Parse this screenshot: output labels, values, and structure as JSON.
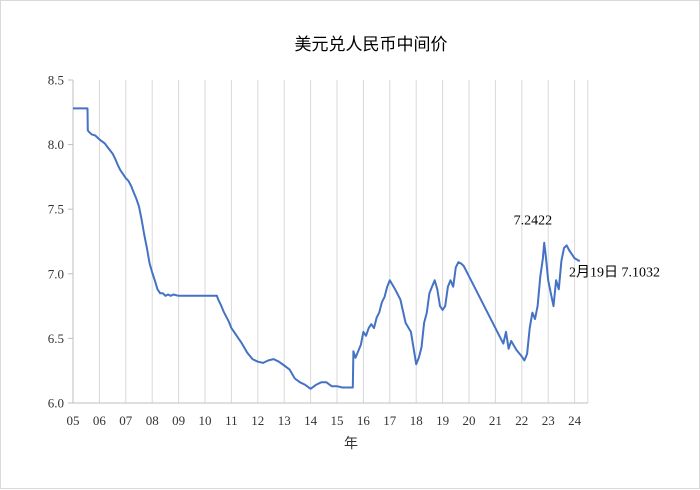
{
  "chart_data": {
    "type": "line",
    "title": "美元兑人民币中间价",
    "xlabel": "年",
    "ylabel": "",
    "xlim": [
      2005,
      2024.5
    ],
    "ylim": [
      6.0,
      8.5
    ],
    "x_ticks": [
      "05",
      "06",
      "07",
      "08",
      "09",
      "10",
      "11",
      "12",
      "13",
      "14",
      "15",
      "16",
      "17",
      "18",
      "19",
      "20",
      "21",
      "22",
      "23",
      "24"
    ],
    "y_ticks": [
      "6.0",
      "6.5",
      "7.0",
      "7.5",
      "8.0",
      "8.5"
    ],
    "grid": "vertical",
    "legend": "none",
    "series_color": "#4472c4",
    "series": [
      {
        "x": [
          2005.0,
          2005.55,
          2005.56,
          2005.6,
          2005.7,
          2005.85,
          2006.0,
          2006.2,
          2006.35,
          2006.5,
          2006.6,
          2006.7,
          2006.8,
          2006.9,
          2007.0,
          2007.1,
          2007.2,
          2007.3,
          2007.4,
          2007.5,
          2007.6,
          2007.7,
          2007.8,
          2007.9,
          2008.0,
          2008.1,
          2008.2,
          2008.3,
          2008.4,
          2008.5,
          2008.6,
          2008.7,
          2008.8,
          2009.0,
          2009.5,
          2010.0,
          2010.45,
          2010.5,
          2010.6,
          2010.7,
          2010.8,
          2010.9,
          2011.0,
          2011.2,
          2011.4,
          2011.6,
          2011.8,
          2012.0,
          2012.2,
          2012.4,
          2012.6,
          2012.8,
          2013.0,
          2013.2,
          2013.4,
          2013.6,
          2013.8,
          2014.0,
          2014.2,
          2014.4,
          2014.6,
          2014.8,
          2015.0,
          2015.2,
          2015.4,
          2015.6,
          2015.62,
          2015.7,
          2015.9,
          2016.0,
          2016.1,
          2016.2,
          2016.3,
          2016.4,
          2016.5,
          2016.6,
          2016.7,
          2016.8,
          2016.9,
          2017.0,
          2017.2,
          2017.4,
          2017.6,
          2017.8,
          2018.0,
          2018.1,
          2018.2,
          2018.3,
          2018.4,
          2018.5,
          2018.6,
          2018.7,
          2018.8,
          2018.9,
          2019.0,
          2019.1,
          2019.2,
          2019.3,
          2019.4,
          2019.5,
          2019.6,
          2019.7,
          2019.8,
          2019.9,
          2021.3,
          2021.4,
          2021.5,
          2021.6,
          2021.8,
          2022.0,
          2022.1,
          2022.2,
          2022.3,
          2022.4,
          2022.5,
          2022.6,
          2022.7,
          2022.8,
          2022.85,
          2022.9,
          2023.0,
          2023.1,
          2023.2,
          2023.3,
          2023.4,
          2023.5,
          2023.6,
          2023.7,
          2023.8,
          2023.9,
          2024.0,
          2024.1,
          2024.13,
          2024.2
        ],
        "values": [
          8.28,
          8.28,
          8.11,
          8.1,
          8.08,
          8.07,
          8.04,
          8.01,
          7.97,
          7.93,
          7.89,
          7.84,
          7.8,
          7.77,
          7.74,
          7.72,
          7.68,
          7.63,
          7.58,
          7.52,
          7.42,
          7.3,
          7.2,
          7.08,
          7.01,
          6.95,
          6.88,
          6.85,
          6.85,
          6.83,
          6.84,
          6.83,
          6.84,
          6.83,
          6.83,
          6.83,
          6.83,
          6.8,
          6.76,
          6.71,
          6.67,
          6.63,
          6.58,
          6.52,
          6.46,
          6.39,
          6.34,
          6.32,
          6.31,
          6.33,
          6.34,
          6.32,
          6.29,
          6.26,
          6.19,
          6.16,
          6.14,
          6.11,
          6.14,
          6.16,
          6.16,
          6.13,
          6.13,
          6.12,
          6.12,
          6.12,
          6.4,
          6.35,
          6.45,
          6.55,
          6.52,
          6.58,
          6.61,
          6.58,
          6.66,
          6.7,
          6.78,
          6.82,
          6.9,
          6.95,
          6.88,
          6.8,
          6.62,
          6.55,
          6.3,
          6.35,
          6.43,
          6.62,
          6.7,
          6.85,
          6.9,
          6.95,
          6.88,
          6.75,
          6.72,
          6.75,
          6.9,
          6.95,
          6.9,
          7.05,
          7.09,
          7.08,
          7.06,
          7.02,
          6.46,
          6.55,
          6.42,
          6.48,
          6.41,
          6.36,
          6.33,
          6.38,
          6.58,
          6.7,
          6.65,
          6.75,
          6.98,
          7.12,
          7.24,
          7.15,
          6.95,
          6.85,
          6.75,
          6.95,
          6.88,
          7.1,
          7.2,
          7.22,
          7.18,
          7.15,
          7.12,
          7.11,
          7.1032,
          7.1
        ]
      }
    ],
    "annotations": [
      {
        "text": "7.2422",
        "x": 2022.8,
        "y": 7.2422
      },
      {
        "text": "2月19日 7.1032",
        "x": 2024.13,
        "y": 7.1032
      }
    ]
  }
}
